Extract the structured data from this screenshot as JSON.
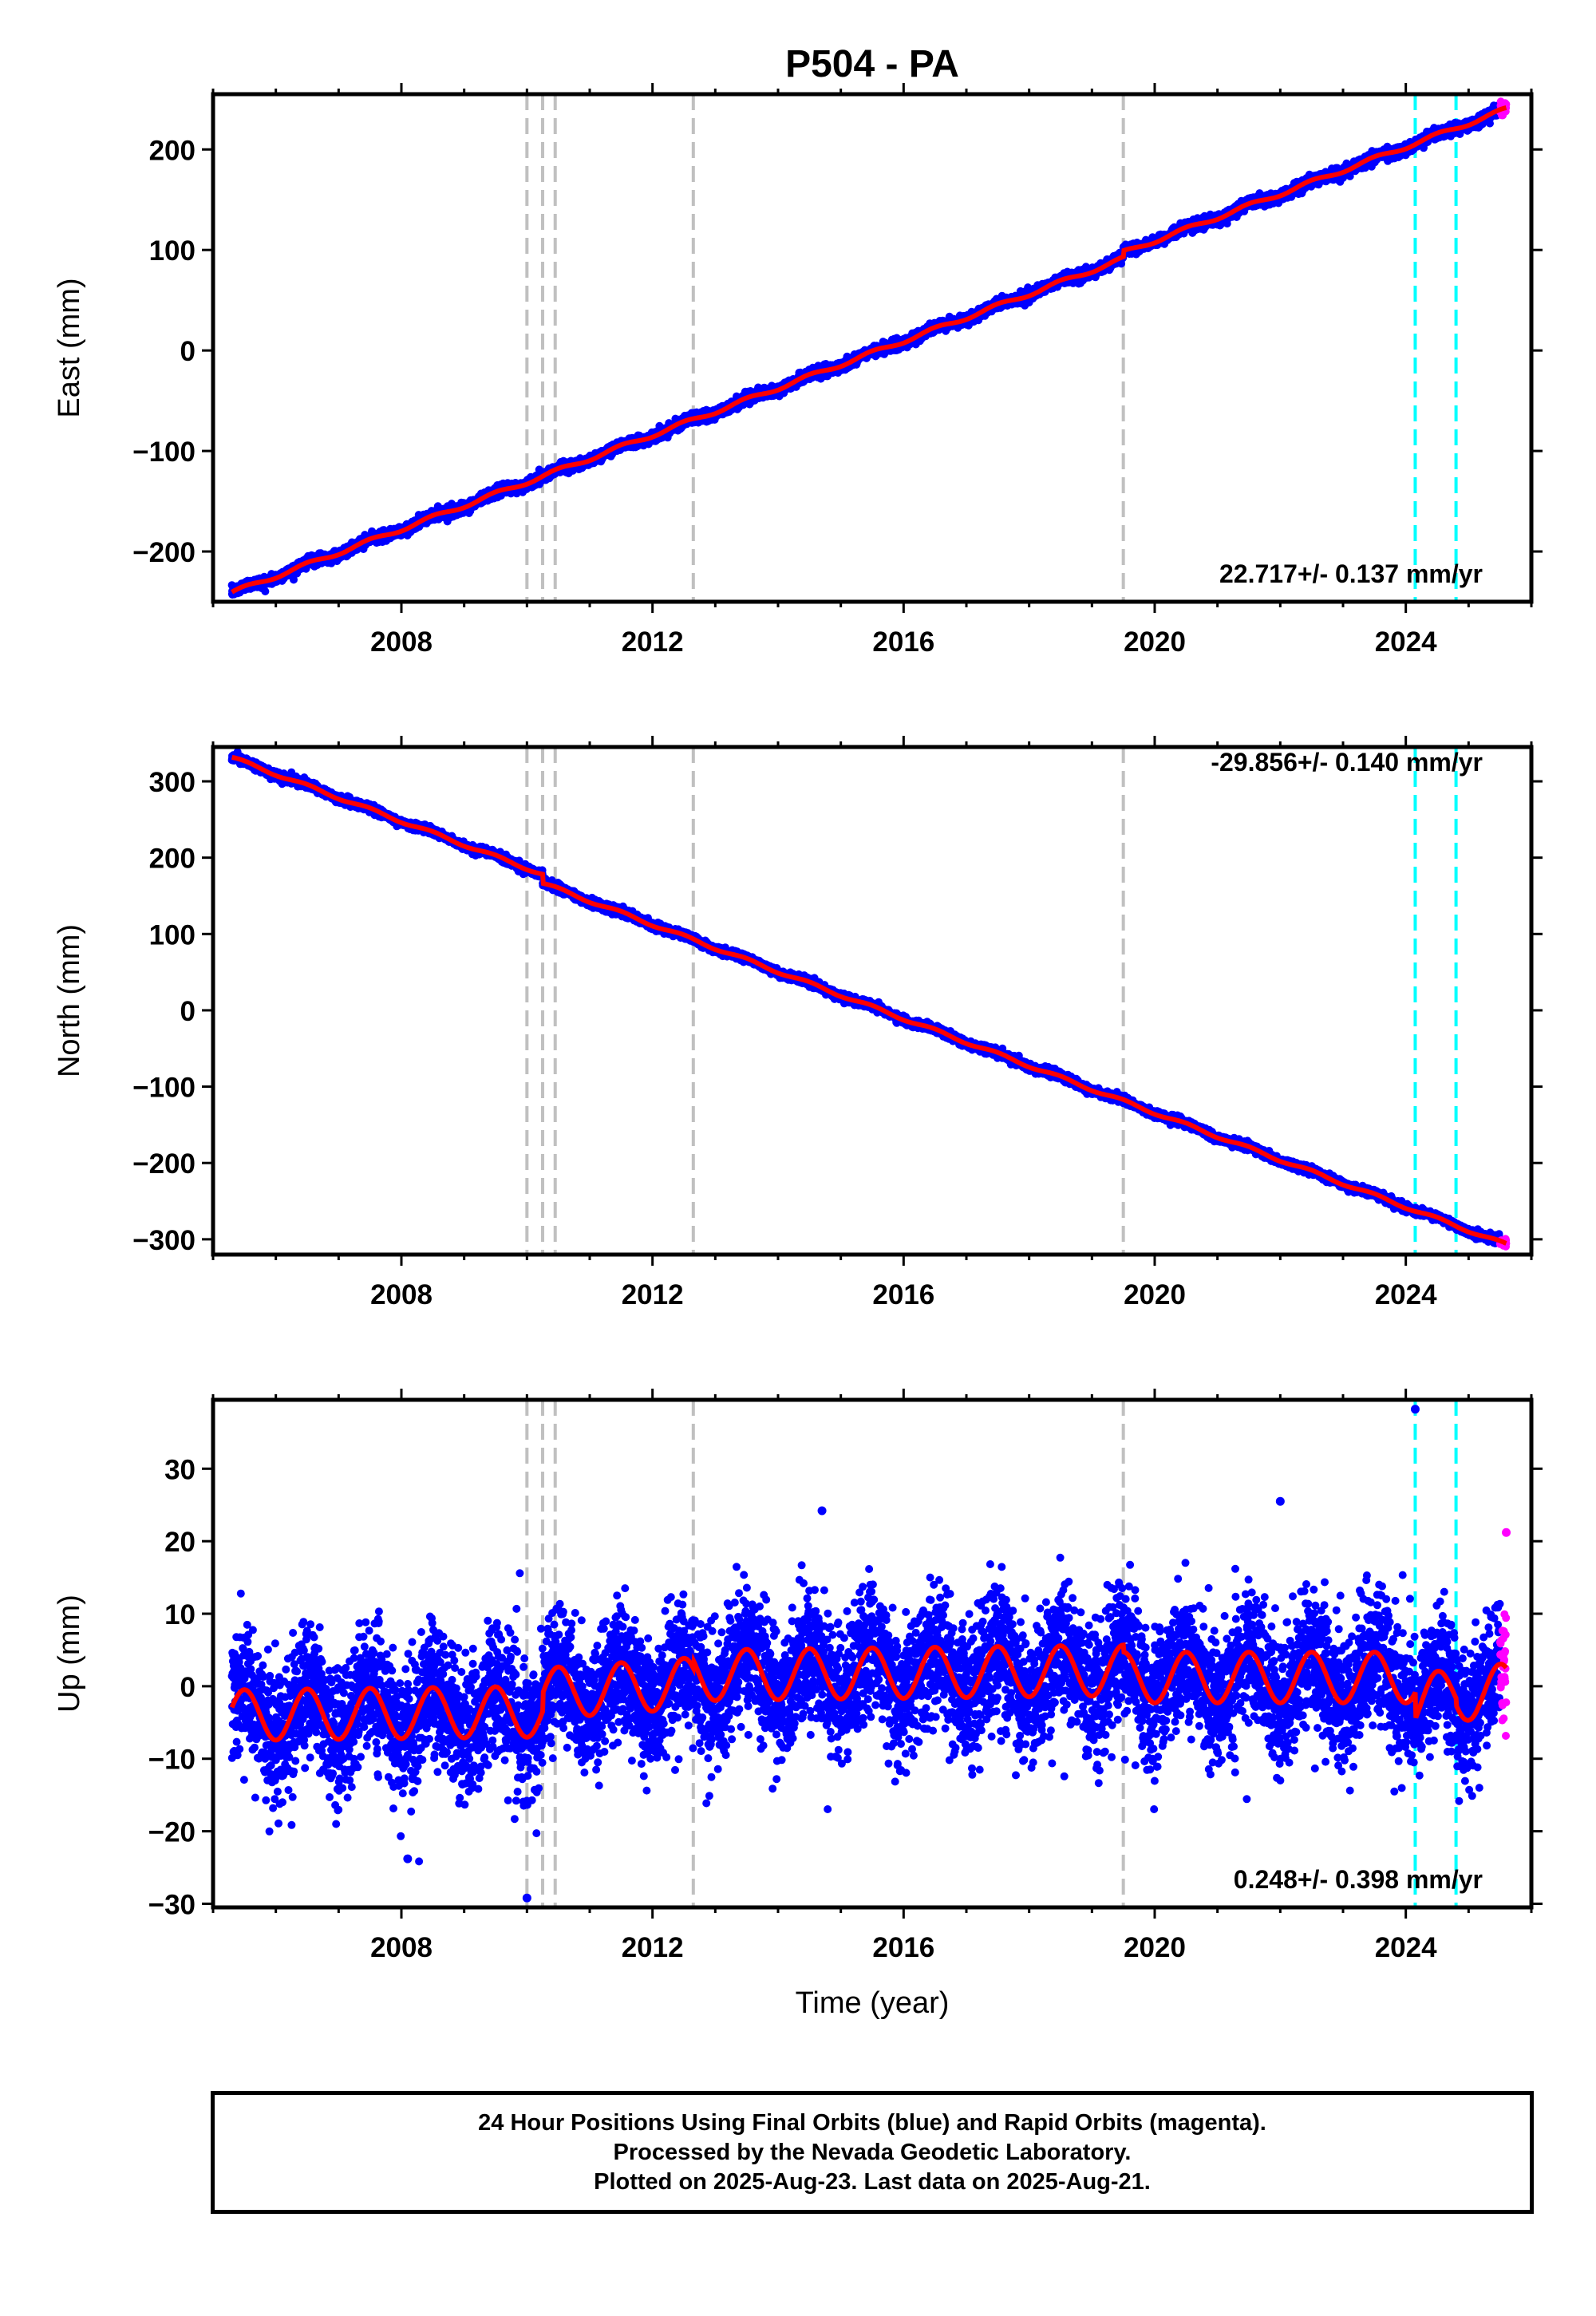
{
  "title": "P504 - PA",
  "xlabel": "Time (year)",
  "footer": {
    "line1": "24 Hour Positions Using Final Orbits (blue) and Rapid Orbits (magenta).",
    "line2": "Processed by the Nevada Geodetic Laboratory.",
    "line3": "Plotted on 2025-Aug-23. Last data on 2025-Aug-21."
  },
  "colors": {
    "final": "#0000ff",
    "rapid": "#ff00ff",
    "model": "#ff0000",
    "equipment_change": "#c0c0c0",
    "earthquake": "#00ffff"
  },
  "chart_data": [
    {
      "type": "scatter",
      "ylabel": "East (mm)",
      "annotation": "22.717+/- 0.137 mm/yr",
      "xlim": [
        2005.0,
        2026.0
      ],
      "ylim": [
        -250,
        255
      ],
      "xticks": [
        2008,
        2012,
        2016,
        2020,
        2024
      ],
      "yticks": [
        -200,
        -100,
        0,
        100,
        200
      ],
      "rate_mm_per_yr": 22.717,
      "start": [
        2005.3,
        -241
      ],
      "end": [
        2025.6,
        240
      ],
      "offsets": [
        {
          "x": 2019.5,
          "dy": 6
        }
      ],
      "noise_mm": 2.5,
      "seasonal_mm": 2,
      "equipment_changes": [
        2010.0,
        2010.25,
        2010.45,
        2012.65,
        2019.5
      ],
      "earthquakes": [
        2024.15,
        2024.8
      ]
    },
    {
      "type": "scatter",
      "ylabel": "North (mm)",
      "annotation": "-29.856+/- 0.140 mm/yr",
      "xlim": [
        2005.0,
        2026.0
      ],
      "ylim": [
        -320,
        345
      ],
      "xticks": [
        2008,
        2012,
        2016,
        2020,
        2024
      ],
      "yticks": [
        -300,
        -200,
        -100,
        0,
        100,
        200,
        300
      ],
      "rate_mm_per_yr": -29.856,
      "start": [
        2005.3,
        331
      ],
      "end": [
        2025.6,
        -307
      ],
      "offsets": [
        {
          "x": 2010.25,
          "dy": -12
        }
      ],
      "noise_mm": 2.5,
      "seasonal_mm": 2,
      "equipment_changes": [
        2010.0,
        2010.25,
        2010.45,
        2012.65,
        2019.5
      ],
      "earthquakes": [
        2024.15,
        2024.8
      ]
    },
    {
      "type": "scatter",
      "ylabel": "Up (mm)",
      "annotation": "0.248+/- 0.398 mm/yr",
      "xlim": [
        2005.0,
        2026.0
      ],
      "ylim": [
        -30.5,
        39.5
      ],
      "xticks": [
        2008,
        2012,
        2016,
        2020,
        2024
      ],
      "yticks": [
        -30,
        -20,
        -10,
        0,
        10,
        20,
        30
      ],
      "rate_mm_per_yr": 0.248,
      "noise_mm": 4.5,
      "seasonal_mm": 3.5,
      "model_segments": [
        {
          "from": 2005.3,
          "to": 2010.25,
          "mean": -4,
          "trend": 0.1
        },
        {
          "from": 2010.25,
          "to": 2012.65,
          "mean": -1,
          "trend": 0.6
        },
        {
          "from": 2012.65,
          "to": 2019.5,
          "mean": 1.5,
          "trend": 0.1
        },
        {
          "from": 2019.5,
          "to": 2024.15,
          "mean": 1.2,
          "trend": 0.0
        },
        {
          "from": 2024.15,
          "to": 2024.8,
          "mean": -2.5,
          "trend": 3.0
        },
        {
          "from": 2024.8,
          "to": 2025.6,
          "mean": -1.5,
          "trend": 1.5
        }
      ],
      "outliers": [
        [
          2024.15,
          38.2
        ],
        [
          2010.0,
          -29.2
        ],
        [
          2008.1,
          -23.8
        ],
        [
          2022.0,
          25.5
        ],
        [
          2014.7,
          24.2
        ],
        [
          2025.6,
          21.2
        ]
      ],
      "equipment_changes": [
        2010.0,
        2010.25,
        2010.45,
        2012.65,
        2019.5
      ],
      "earthquakes": [
        2024.15,
        2024.8
      ]
    }
  ]
}
